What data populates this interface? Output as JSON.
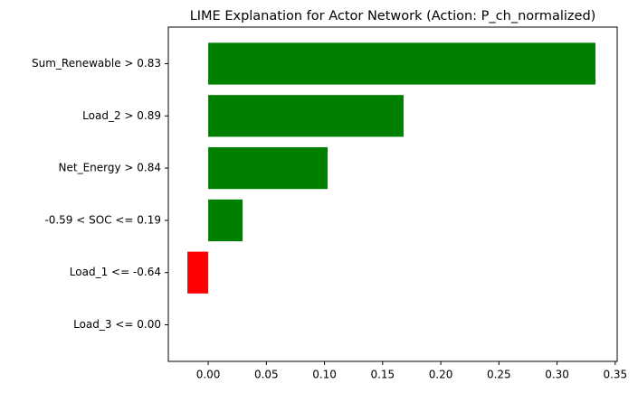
{
  "chart_data": {
    "type": "barh",
    "title": "LIME Explanation for Actor Network (Action: P_ch_normalized)",
    "categories": [
      "Sum_Renewable > 0.83",
      "Load_2 > 0.89",
      "Net_Energy > 0.84",
      "-0.59 < SOC <= 0.19",
      "Load_1 <= -0.64",
      "Load_3 <= 0.00"
    ],
    "values": [
      0.333,
      0.168,
      0.1027,
      0.0296,
      -0.0179,
      0.0
    ],
    "colors": [
      "#008000",
      "#008000",
      "#008000",
      "#008000",
      "#ff0000",
      "#ff0000"
    ],
    "xlim": [
      -0.0343,
      0.3517
    ],
    "xticks": [
      {
        "value": 0,
        "label": "0.00"
      },
      {
        "value": 0.05,
        "label": "0.05"
      },
      {
        "value": 0.1,
        "label": "0.10"
      },
      {
        "value": 0.15,
        "label": "0.15"
      },
      {
        "value": 0.2,
        "label": "0.20"
      },
      {
        "value": 0.25,
        "label": "0.25"
      },
      {
        "value": 0.3,
        "label": "0.30"
      },
      {
        "value": 0.35,
        "label": "0.35"
      }
    ],
    "grid": false
  }
}
